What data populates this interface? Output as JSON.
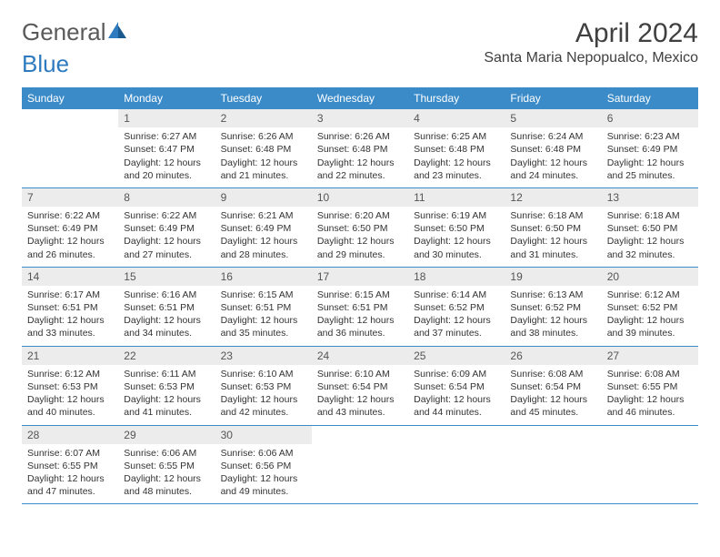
{
  "logo": {
    "text_a": "General",
    "text_b": "Blue"
  },
  "title": "April 2024",
  "location": "Santa Maria Nepopualco, Mexico",
  "colors": {
    "header_bg": "#3b8bc9",
    "header_fg": "#ffffff",
    "daynum_bg": "#ececec",
    "border": "#3b8bc9"
  },
  "weekdays": [
    "Sunday",
    "Monday",
    "Tuesday",
    "Wednesday",
    "Thursday",
    "Friday",
    "Saturday"
  ],
  "weeks": [
    [
      {
        "n": "",
        "lines": []
      },
      {
        "n": "1",
        "lines": [
          "Sunrise: 6:27 AM",
          "Sunset: 6:47 PM",
          "Daylight: 12 hours",
          "and 20 minutes."
        ]
      },
      {
        "n": "2",
        "lines": [
          "Sunrise: 6:26 AM",
          "Sunset: 6:48 PM",
          "Daylight: 12 hours",
          "and 21 minutes."
        ]
      },
      {
        "n": "3",
        "lines": [
          "Sunrise: 6:26 AM",
          "Sunset: 6:48 PM",
          "Daylight: 12 hours",
          "and 22 minutes."
        ]
      },
      {
        "n": "4",
        "lines": [
          "Sunrise: 6:25 AM",
          "Sunset: 6:48 PM",
          "Daylight: 12 hours",
          "and 23 minutes."
        ]
      },
      {
        "n": "5",
        "lines": [
          "Sunrise: 6:24 AM",
          "Sunset: 6:48 PM",
          "Daylight: 12 hours",
          "and 24 minutes."
        ]
      },
      {
        "n": "6",
        "lines": [
          "Sunrise: 6:23 AM",
          "Sunset: 6:49 PM",
          "Daylight: 12 hours",
          "and 25 minutes."
        ]
      }
    ],
    [
      {
        "n": "7",
        "lines": [
          "Sunrise: 6:22 AM",
          "Sunset: 6:49 PM",
          "Daylight: 12 hours",
          "and 26 minutes."
        ]
      },
      {
        "n": "8",
        "lines": [
          "Sunrise: 6:22 AM",
          "Sunset: 6:49 PM",
          "Daylight: 12 hours",
          "and 27 minutes."
        ]
      },
      {
        "n": "9",
        "lines": [
          "Sunrise: 6:21 AM",
          "Sunset: 6:49 PM",
          "Daylight: 12 hours",
          "and 28 minutes."
        ]
      },
      {
        "n": "10",
        "lines": [
          "Sunrise: 6:20 AM",
          "Sunset: 6:50 PM",
          "Daylight: 12 hours",
          "and 29 minutes."
        ]
      },
      {
        "n": "11",
        "lines": [
          "Sunrise: 6:19 AM",
          "Sunset: 6:50 PM",
          "Daylight: 12 hours",
          "and 30 minutes."
        ]
      },
      {
        "n": "12",
        "lines": [
          "Sunrise: 6:18 AM",
          "Sunset: 6:50 PM",
          "Daylight: 12 hours",
          "and 31 minutes."
        ]
      },
      {
        "n": "13",
        "lines": [
          "Sunrise: 6:18 AM",
          "Sunset: 6:50 PM",
          "Daylight: 12 hours",
          "and 32 minutes."
        ]
      }
    ],
    [
      {
        "n": "14",
        "lines": [
          "Sunrise: 6:17 AM",
          "Sunset: 6:51 PM",
          "Daylight: 12 hours",
          "and 33 minutes."
        ]
      },
      {
        "n": "15",
        "lines": [
          "Sunrise: 6:16 AM",
          "Sunset: 6:51 PM",
          "Daylight: 12 hours",
          "and 34 minutes."
        ]
      },
      {
        "n": "16",
        "lines": [
          "Sunrise: 6:15 AM",
          "Sunset: 6:51 PM",
          "Daylight: 12 hours",
          "and 35 minutes."
        ]
      },
      {
        "n": "17",
        "lines": [
          "Sunrise: 6:15 AM",
          "Sunset: 6:51 PM",
          "Daylight: 12 hours",
          "and 36 minutes."
        ]
      },
      {
        "n": "18",
        "lines": [
          "Sunrise: 6:14 AM",
          "Sunset: 6:52 PM",
          "Daylight: 12 hours",
          "and 37 minutes."
        ]
      },
      {
        "n": "19",
        "lines": [
          "Sunrise: 6:13 AM",
          "Sunset: 6:52 PM",
          "Daylight: 12 hours",
          "and 38 minutes."
        ]
      },
      {
        "n": "20",
        "lines": [
          "Sunrise: 6:12 AM",
          "Sunset: 6:52 PM",
          "Daylight: 12 hours",
          "and 39 minutes."
        ]
      }
    ],
    [
      {
        "n": "21",
        "lines": [
          "Sunrise: 6:12 AM",
          "Sunset: 6:53 PM",
          "Daylight: 12 hours",
          "and 40 minutes."
        ]
      },
      {
        "n": "22",
        "lines": [
          "Sunrise: 6:11 AM",
          "Sunset: 6:53 PM",
          "Daylight: 12 hours",
          "and 41 minutes."
        ]
      },
      {
        "n": "23",
        "lines": [
          "Sunrise: 6:10 AM",
          "Sunset: 6:53 PM",
          "Daylight: 12 hours",
          "and 42 minutes."
        ]
      },
      {
        "n": "24",
        "lines": [
          "Sunrise: 6:10 AM",
          "Sunset: 6:54 PM",
          "Daylight: 12 hours",
          "and 43 minutes."
        ]
      },
      {
        "n": "25",
        "lines": [
          "Sunrise: 6:09 AM",
          "Sunset: 6:54 PM",
          "Daylight: 12 hours",
          "and 44 minutes."
        ]
      },
      {
        "n": "26",
        "lines": [
          "Sunrise: 6:08 AM",
          "Sunset: 6:54 PM",
          "Daylight: 12 hours",
          "and 45 minutes."
        ]
      },
      {
        "n": "27",
        "lines": [
          "Sunrise: 6:08 AM",
          "Sunset: 6:55 PM",
          "Daylight: 12 hours",
          "and 46 minutes."
        ]
      }
    ],
    [
      {
        "n": "28",
        "lines": [
          "Sunrise: 6:07 AM",
          "Sunset: 6:55 PM",
          "Daylight: 12 hours",
          "and 47 minutes."
        ]
      },
      {
        "n": "29",
        "lines": [
          "Sunrise: 6:06 AM",
          "Sunset: 6:55 PM",
          "Daylight: 12 hours",
          "and 48 minutes."
        ]
      },
      {
        "n": "30",
        "lines": [
          "Sunrise: 6:06 AM",
          "Sunset: 6:56 PM",
          "Daylight: 12 hours",
          "and 49 minutes."
        ]
      },
      {
        "n": "",
        "lines": []
      },
      {
        "n": "",
        "lines": []
      },
      {
        "n": "",
        "lines": []
      },
      {
        "n": "",
        "lines": []
      }
    ]
  ]
}
